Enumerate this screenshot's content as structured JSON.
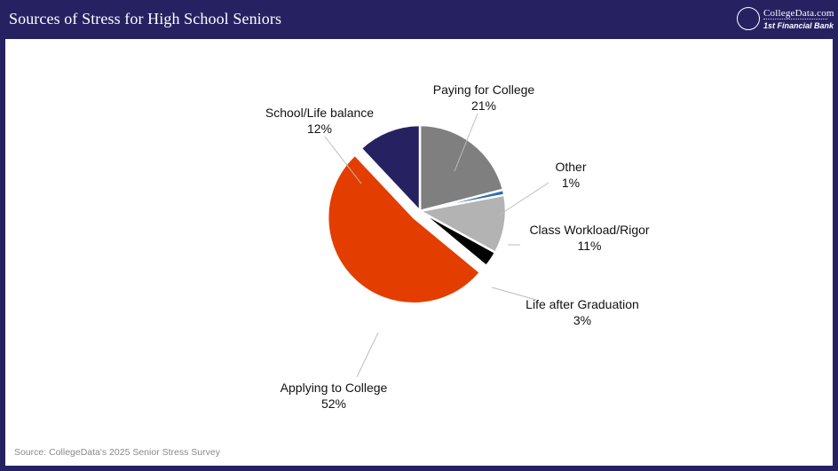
{
  "header": {
    "title": "Sources of Stress for High School Seniors",
    "logo_name": "CollegeData.com",
    "logo_partner": "1st Financial Bank",
    "background_color": "#262262"
  },
  "chart_data": {
    "type": "pie",
    "title": "Sources of Stress for High School Seniors",
    "start": "clockwise from 12 o'clock, with the Applying to College slice pulled out of the pie",
    "slices": [
      {
        "label": "Paying for College",
        "value": 21,
        "value_label": "21%",
        "color": "#7f7f7f"
      },
      {
        "label": "Other",
        "value": 1,
        "value_label": "1%",
        "color": "#2e6db4"
      },
      {
        "label": "Class Workload/Rigor",
        "value": 11,
        "value_label": "11%",
        "color": "#b3b3b3"
      },
      {
        "label": "Life after Graduation",
        "value": 3,
        "value_label": "3%",
        "color": "#000000"
      },
      {
        "label": "Applying to College",
        "value": 52,
        "value_label": "52%",
        "color": "#e33e00"
      },
      {
        "label": "School/Life balance",
        "value": 12,
        "value_label": "12%",
        "color": "#262262"
      }
    ],
    "legend": "none"
  },
  "footer": {
    "source": "Source: CollegeData's 2025 Senior Stress Survey"
  }
}
